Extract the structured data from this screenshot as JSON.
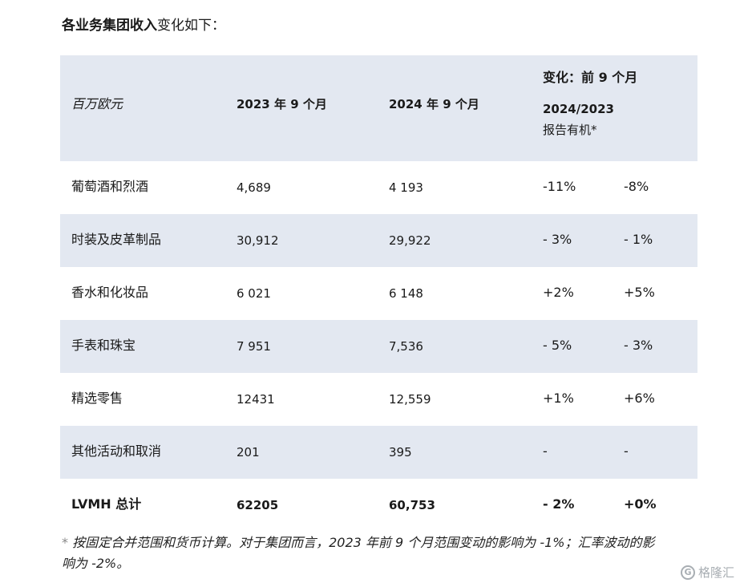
{
  "heading": {
    "bold": "各业务集团收入",
    "normal": "变化如下："
  },
  "table": {
    "header": {
      "unit": "百万欧元",
      "col_2023": "2023 年 9 个月",
      "col_2024": "2024 年 9 个月",
      "change_title": "变化：前 9 个月",
      "change_period": "2024/2023",
      "change_reported": "报告有机*"
    },
    "rows": [
      {
        "name": "葡萄酒和烈酒",
        "v2023": "4,689",
        "v2024": "4 193",
        "reported": "-11%",
        "organic": "-8%"
      },
      {
        "name": "时装及皮革制品",
        "v2023": "30,912",
        "v2024": "29,922",
        "reported": "- 3%",
        "organic": "- 1%"
      },
      {
        "name": "香水和化妆品",
        "v2023": "6 021",
        "v2024": "6 148",
        "reported": "+2%",
        "organic": "+5%"
      },
      {
        "name": "手表和珠宝",
        "v2023": "7 951",
        "v2024": "7,536",
        "reported": "- 5%",
        "organic": "- 3%"
      },
      {
        "name": "精选零售",
        "v2023": "12431",
        "v2024": "12,559",
        "reported": "+1%",
        "organic": "+6%"
      },
      {
        "name": "其他活动和取消",
        "v2023": "201",
        "v2024": "395",
        "reported": "-",
        "organic": "-"
      },
      {
        "name": "LVMH 总计",
        "v2023": "62205",
        "v2024": "60,753",
        "reported": "- 2%",
        "organic": "+0%"
      }
    ]
  },
  "footnote": {
    "star": "*",
    "line1": "按固定合并范围和货币计算。对于集团而言，2023 年前 9 个月范围变动的影响为 -1%；汇率波动的影",
    "line2": "响为 -2%。"
  },
  "watermark": {
    "logo_letter": "G",
    "text": "格隆汇"
  }
}
